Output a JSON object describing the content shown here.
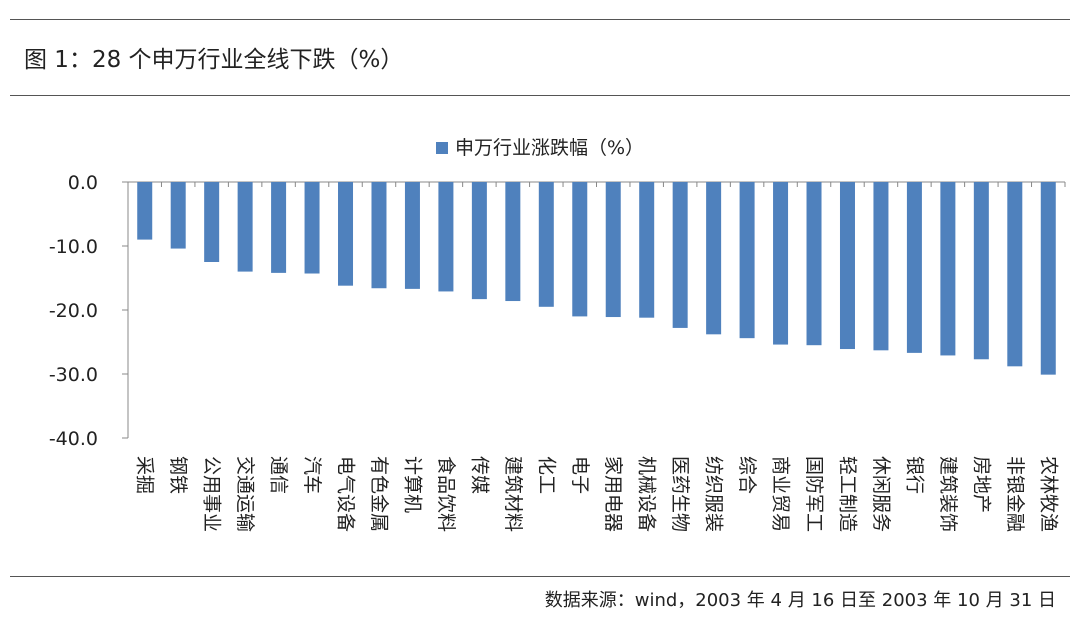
{
  "figure": {
    "title": "图 1：28 个申万行业全线下跌（%）",
    "source": "数据来源：wind，2003 年 4 月 16 日至 2003 年 10 月 31 日"
  },
  "colors": {
    "bar": "#4f81bd",
    "axis": "#888888",
    "text": "#222222"
  },
  "chart_data": {
    "type": "bar",
    "categories": [
      "采掘",
      "钢铁",
      "公用事业",
      "交通运输",
      "通信",
      "汽车",
      "电气设备",
      "有色金属",
      "计算机",
      "食品饮料",
      "传媒",
      "建筑材料",
      "化工",
      "电子",
      "家用电器",
      "机械设备",
      "医药生物",
      "纺织服装",
      "综合",
      "商业贸易",
      "国防军工",
      "轻工制造",
      "休闲服务",
      "银行",
      "建筑装饰",
      "房地产",
      "非银金融",
      "农林牧渔"
    ],
    "series": [
      {
        "name": "申万行业涨跌幅（%）",
        "values": [
          -9.0,
          -10.4,
          -12.5,
          -14.0,
          -14.2,
          -14.3,
          -16.2,
          -16.6,
          -16.7,
          -17.1,
          -18.3,
          -18.6,
          -19.5,
          -21.0,
          -21.1,
          -21.2,
          -22.8,
          -23.8,
          -24.4,
          -25.4,
          -25.5,
          -26.1,
          -26.3,
          -26.7,
          -27.1,
          -27.7,
          -28.8,
          -30.1
        ]
      }
    ],
    "y_ticks": [
      "0.0",
      "-10.0",
      "-20.0",
      "-30.0",
      "-40.0"
    ],
    "ylim": [
      -40,
      0
    ],
    "legend_position": "top-center",
    "grid": false,
    "xlabel": "",
    "ylabel": ""
  }
}
